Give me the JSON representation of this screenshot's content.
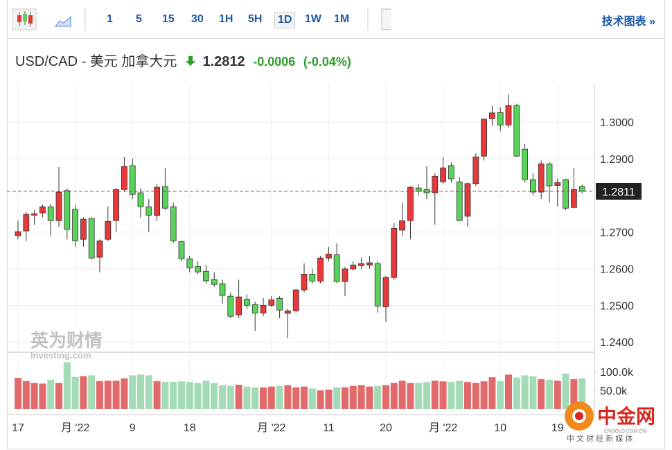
{
  "toolbar": {
    "intervals": [
      "1",
      "5",
      "15",
      "30",
      "1H",
      "5H",
      "1D",
      "1W",
      "1M"
    ],
    "active_interval": "1D",
    "technical_link": "技术图表 »"
  },
  "quote": {
    "symbol": "USD/CAD - 美元 加拿大元",
    "price": 1.2812,
    "change": -0.0006,
    "change_percent": "(-0.04%)"
  },
  "chart_data": {
    "type": "candlestick",
    "categories": [
      "17",
      null,
      null,
      null,
      null,
      null,
      null,
      "月 '22",
      null,
      null,
      null,
      null,
      null,
      null,
      "9",
      null,
      null,
      null,
      null,
      null,
      null,
      "18",
      null,
      null,
      null,
      null,
      null,
      null,
      null,
      null,
      null,
      "月 '22",
      null,
      null,
      null,
      null,
      null,
      null,
      "11",
      null,
      null,
      null,
      null,
      null,
      null,
      "20",
      null,
      null,
      null,
      null,
      null,
      null,
      "月 '22",
      null,
      null,
      null,
      null,
      null,
      null,
      "10",
      null,
      null,
      null,
      null,
      null,
      null,
      "19",
      null,
      null,
      null
    ],
    "open": [
      1.269,
      1.2703,
      1.2746,
      1.2752,
      1.2769,
      1.2731,
      1.2813,
      1.2762,
      1.268,
      1.2737,
      1.2631,
      1.268,
      1.2731,
      1.2816,
      1.2881,
      1.2807,
      1.2769,
      1.2745,
      1.2824,
      1.2769,
      1.2674,
      1.2627,
      1.2606,
      1.2593,
      1.257,
      1.2559,
      1.2525,
      1.2474,
      1.2517,
      1.2502,
      1.2479,
      1.25,
      1.2519,
      1.2478,
      1.2485,
      1.2542,
      1.2585,
      1.2566,
      1.2629,
      1.2638,
      1.2565,
      1.2599,
      1.2608,
      1.261,
      1.2614,
      1.2496,
      1.2576,
      1.2705,
      1.2731,
      1.282,
      1.2816,
      1.2807,
      1.2837,
      1.2881,
      1.2837,
      1.2743,
      1.2832,
      1.2907,
      1.3009,
      1.3026,
      1.2992,
      1.3045,
      1.2926,
      1.2843,
      1.2809,
      1.2886,
      1.2827,
      1.2843,
      1.2767,
      1.2824
    ],
    "high": [
      1.2731,
      1.2755,
      1.276,
      1.2775,
      1.2777,
      1.2877,
      1.282,
      1.2775,
      1.274,
      1.274,
      1.268,
      1.277,
      1.282,
      1.2905,
      1.29,
      1.282,
      1.279,
      1.283,
      1.2875,
      1.278,
      1.2675,
      1.2635,
      1.262,
      1.261,
      1.259,
      1.257,
      1.2535,
      1.257,
      1.253,
      1.251,
      1.252,
      1.2525,
      1.2525,
      1.249,
      1.2545,
      1.2615,
      1.26,
      1.2635,
      1.266,
      1.267,
      1.2605,
      1.262,
      1.263,
      1.2635,
      1.262,
      1.258,
      1.2725,
      1.278,
      1.2825,
      1.283,
      1.288,
      1.286,
      1.2905,
      1.289,
      1.285,
      1.2835,
      1.2915,
      1.301,
      1.3045,
      1.304,
      1.3075,
      1.305,
      1.294,
      1.286,
      1.2895,
      1.289,
      1.2845,
      1.2845,
      1.2875,
      1.283
    ],
    "low": [
      1.268,
      1.2675,
      1.272,
      1.274,
      1.269,
      1.2714,
      1.268,
      1.266,
      1.266,
      1.2625,
      1.259,
      1.2675,
      1.27,
      1.281,
      1.279,
      1.274,
      1.27,
      1.273,
      1.276,
      1.267,
      1.262,
      1.259,
      1.2585,
      1.256,
      1.255,
      1.2505,
      1.2465,
      1.2465,
      1.249,
      1.243,
      1.247,
      1.2495,
      1.2465,
      1.241,
      1.248,
      1.2535,
      1.256,
      1.256,
      1.262,
      1.256,
      1.2525,
      1.2595,
      1.26,
      1.26,
      1.248,
      1.2455,
      1.257,
      1.269,
      1.268,
      1.28,
      1.279,
      1.272,
      1.283,
      1.2835,
      1.273,
      1.2715,
      1.2825,
      1.2895,
      1.299,
      1.2975,
      1.2985,
      1.2905,
      1.2835,
      1.28,
      1.279,
      1.278,
      1.277,
      1.276,
      1.2765,
      1.2805
    ],
    "close": [
      1.2701,
      1.2748,
      1.275,
      1.2769,
      1.2731,
      1.2809,
      1.2707,
      1.2676,
      1.2735,
      1.2629,
      1.2676,
      1.2729,
      1.2816,
      1.2879,
      1.2803,
      1.2769,
      1.2746,
      1.2822,
      1.2765,
      1.2676,
      1.2627,
      1.2602,
      1.2591,
      1.2567,
      1.2557,
      1.2527,
      1.247,
      1.2523,
      1.25,
      1.2479,
      1.25,
      1.2515,
      1.2487,
      1.2485,
      1.2542,
      1.2585,
      1.2566,
      1.2629,
      1.264,
      1.2565,
      1.2599,
      1.261,
      1.2614,
      1.2616,
      1.2498,
      1.2576,
      1.271,
      1.2731,
      1.2822,
      1.2811,
      1.2807,
      1.2852,
      1.2875,
      1.2845,
      1.2731,
      1.2832,
      1.2905,
      1.3008,
      1.3025,
      1.2992,
      1.3045,
      1.2907,
      1.2843,
      1.2809,
      1.2886,
      1.2826,
      1.2835,
      1.2765,
      1.2816,
      1.2812
    ],
    "volume": [
      83000,
      75000,
      70000,
      68000,
      78000,
      70000,
      125000,
      86000,
      88000,
      90000,
      75000,
      76000,
      76000,
      82000,
      90000,
      92000,
      90000,
      75000,
      72000,
      72000,
      74000,
      72000,
      70000,
      76000,
      70000,
      64000,
      62000,
      65000,
      60000,
      58000,
      58000,
      60000,
      62000,
      64000,
      58000,
      60000,
      55000,
      50000,
      52000,
      58000,
      58000,
      62000,
      64000,
      60000,
      62000,
      64000,
      70000,
      76000,
      70000,
      70000,
      72000,
      76000,
      74000,
      72000,
      76000,
      72000,
      70000,
      74000,
      85000,
      75000,
      92000,
      84000,
      90000,
      88000,
      80000,
      78000,
      76000,
      95000,
      80000,
      82000
    ],
    "ylim": [
      1.2372,
      1.3106
    ],
    "yticks": [
      {
        "value": 1.24,
        "label": "1.2400"
      },
      {
        "value": 1.25,
        "label": "1.2500"
      },
      {
        "value": 1.26,
        "label": "1.2600"
      },
      {
        "value": 1.27,
        "label": "1.2700"
      },
      {
        "value": 1.28,
        "label": "1.2800"
      },
      {
        "value": 1.29,
        "label": "1.2900"
      },
      {
        "value": 1.3,
        "label": "1.3000"
      }
    ],
    "volume_ylim": [
      0,
      148000
    ],
    "volume_ticks": [
      {
        "value": 50000,
        "label": "50.0k"
      },
      {
        "value": 100000,
        "label": "100.0k"
      }
    ],
    "last_price": 1.2811,
    "up_color": "#e5393b",
    "down_color": "#59d359",
    "volume_up_color": "#e26a6a",
    "volume_down_color": "#a3dbb6",
    "grid": true
  },
  "watermark": {
    "brand": "英为财情",
    "site": "Investing.com"
  },
  "logo": {
    "name": "中金网",
    "url": "CNGOLD.COM.CN",
    "tagline": "中 文 财 经 新 媒 体"
  }
}
